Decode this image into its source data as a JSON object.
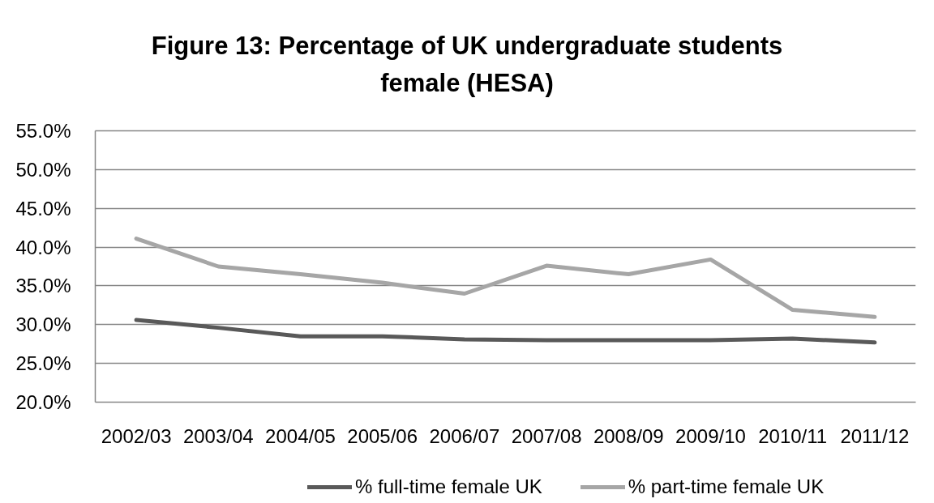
{
  "chart_data": {
    "type": "line",
    "title": "Figure 13: Percentage of UK undergraduate students female (HESA)",
    "categories": [
      "2002/03",
      "2003/04",
      "2004/05",
      "2005/06",
      "2006/07",
      "2007/08",
      "2008/09",
      "2009/10",
      "2010/11",
      "2011/12"
    ],
    "series": [
      {
        "name": "% full-time female UK",
        "color": "#595959",
        "values": [
          30.6,
          29.6,
          28.5,
          28.5,
          28.1,
          28.0,
          28.0,
          28.0,
          28.2,
          27.7
        ]
      },
      {
        "name": "% part-time female UK",
        "color": "#a6a6a6",
        "values": [
          41.1,
          37.5,
          36.5,
          35.4,
          34.0,
          37.6,
          36.5,
          38.4,
          31.9,
          31.0
        ]
      }
    ],
    "ylim": [
      20,
      55
    ],
    "yticks": [
      {
        "value": 20,
        "label": "20.0%"
      },
      {
        "value": 25,
        "label": "25.0%"
      },
      {
        "value": 30,
        "label": "30.0%"
      },
      {
        "value": 35,
        "label": "35.0%"
      },
      {
        "value": 40,
        "label": "40.0%"
      },
      {
        "value": 45,
        "label": "45.0%"
      },
      {
        "value": 50,
        "label": "50.0%"
      },
      {
        "value": 55,
        "label": "55.0%"
      }
    ],
    "grid": "y",
    "legend": "bottom",
    "marker": "none",
    "line_style": "solid"
  }
}
